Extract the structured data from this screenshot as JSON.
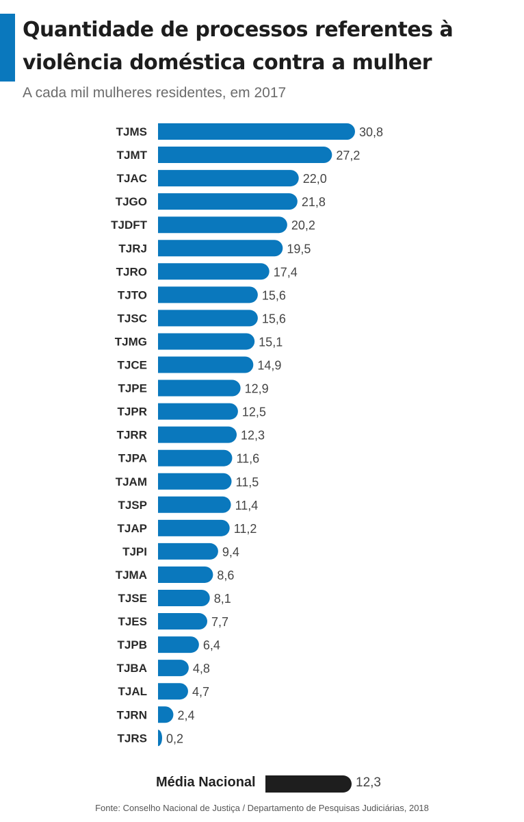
{
  "header": {
    "title": "Quantidade de processos referentes à violência doméstica contra a mulher",
    "subtitle": "A cada mil mulheres residentes, em 2017"
  },
  "colors": {
    "accent": "#0a78bd",
    "bar": "#0a78bd",
    "average_bar": "#1e1e1e"
  },
  "chart_data": {
    "type": "bar",
    "orientation": "horizontal",
    "title": "Quantidade de processos referentes à violência doméstica contra a mulher",
    "subtitle": "A cada mil mulheres residentes, em 2017",
    "categories": [
      "TJMS",
      "TJMT",
      "TJAC",
      "TJGO",
      "TJDFT",
      "TJRJ",
      "TJRO",
      "TJTO",
      "TJSC",
      "TJMG",
      "TJCE",
      "TJPE",
      "TJPR",
      "TJRR",
      "TJPA",
      "TJAM",
      "TJSP",
      "TJAP",
      "TJPI",
      "TJMA",
      "TJSE",
      "TJES",
      "TJPB",
      "TJBA",
      "TJAL",
      "TJRN",
      "TJRS"
    ],
    "values": [
      30.8,
      27.2,
      22.0,
      21.8,
      20.2,
      19.5,
      17.4,
      15.6,
      15.6,
      15.1,
      14.9,
      12.9,
      12.5,
      12.3,
      11.6,
      11.5,
      11.4,
      11.2,
      9.4,
      8.6,
      8.1,
      7.7,
      6.4,
      4.8,
      4.7,
      2.4,
      0.2
    ],
    "value_labels": [
      "30,8",
      "27,2",
      "22,0",
      "21,8",
      "20,2",
      "19,5",
      "17,4",
      "15,6",
      "15,6",
      "15,1",
      "14,9",
      "12,9",
      "12,5",
      "12,3",
      "11,6",
      "11,5",
      "11,4",
      "11,2",
      "9,4",
      "8,6",
      "8,1",
      "7,7",
      "6,4",
      "4,8",
      "4,7",
      "2,4",
      "0,2"
    ],
    "average": {
      "label": "Média Nacional",
      "value": 12.3,
      "value_label": "12,3"
    },
    "xlabel": "",
    "ylabel": "",
    "grid": false,
    "legend": "none"
  },
  "footer": {
    "source": "Fonte: Conselho Nacional de Justiça / Departamento de Pesquisas Judiciárias, 2018"
  }
}
